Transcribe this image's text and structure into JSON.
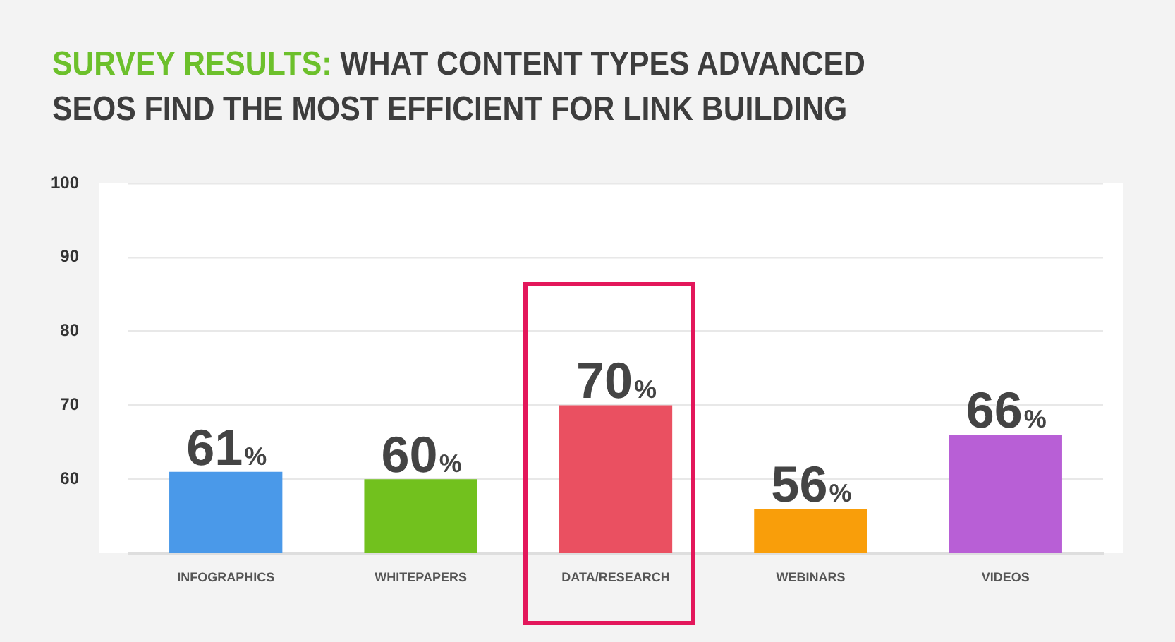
{
  "chart_data": {
    "type": "bar",
    "title": "SURVEY RESULTS: WHAT CONTENT TYPES ADVANCED SEOS FIND THE MOST EFFICIENT FOR LINK BUILDING",
    "categories": [
      "INFOGRAPHICS",
      "WHITEPAPERS",
      "DATA/RESEARCH",
      "WEBINARS",
      "VIDEOS"
    ],
    "values": [
      61,
      60,
      70,
      56,
      66
    ],
    "colors": [
      "#4a99e9",
      "#72c11e",
      "#ea5061",
      "#f99e0a",
      "#b85fd6"
    ],
    "value_labels": [
      "61%",
      "60%",
      "70%",
      "56%",
      "66%"
    ],
    "ylim": [
      50,
      100
    ],
    "yticks": [
      60,
      70,
      80,
      90,
      100
    ],
    "grid": "y",
    "legend": false
  }
}
